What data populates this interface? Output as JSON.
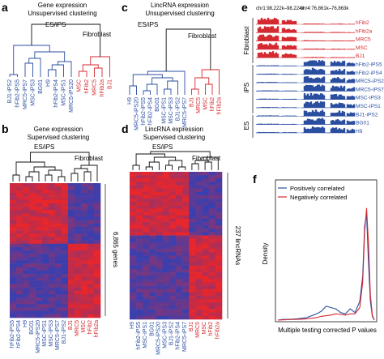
{
  "colors": {
    "es_ips": "#2b4ea0",
    "fibroblast": "#d42a30",
    "heat_red": "#e8262b",
    "heat_blue": "#3b3fae",
    "black": "#111111"
  },
  "panels": {
    "a": {
      "letter": "a",
      "title_line1": "Gene expression",
      "title_line2": "Unsupervised clustering",
      "group_left": "ES/iPS",
      "group_right": "Fibroblast",
      "samples_blue": [
        "BJ1-iPS2",
        "hFib2-iPS5",
        "MRC5-iPS7",
        "MSC-iPS3",
        "BG01",
        "H9",
        "hFib2-iPS4",
        "MSC-iPS1",
        "MRC5-iPS20"
      ],
      "samples_red": [
        "MSC",
        "hFib2",
        "MRC5",
        "hFib2a",
        "BJ1"
      ]
    },
    "b": {
      "letter": "b",
      "title_line1": "Gene expression",
      "title_line2": "Supervised clustering",
      "group_left": "ES/iPS",
      "group_right": "Fibroblast",
      "row_annotation": "6,865 genes",
      "samples_blue": [
        "hFib2-iPS5",
        "hFib2-iPS4",
        "H9",
        "BG01",
        "MRC5-iPS20",
        "MSC-iPS1",
        "MSC-iPS3",
        "MRC5-iPS7",
        "BJ1-iPS2"
      ],
      "samples_red": [
        "BJ1",
        "MRC5",
        "MSC",
        "hFib2",
        "hFib2a"
      ]
    },
    "c": {
      "letter": "c",
      "title_line1": "LincRNA expression",
      "title_line2": "Unsupervised clustering",
      "group_left": "ES/iPS",
      "group_right": "Fibroblast",
      "samples_blue": [
        "H9",
        "MRC5-iPS20",
        "hFib2-iPS5",
        "hFib2-iPS4",
        "BG01",
        "MSC-iPS1",
        "MSC-iPS3",
        "BJ1-iPS2",
        "MRC5-iPS7"
      ],
      "samples_red": [
        "BJ1",
        "MRC5",
        "MSC",
        "hFib2",
        "hFib2a"
      ]
    },
    "d": {
      "letter": "d",
      "title_line1": "LincRNA expression",
      "title_line2": "Supervised clustering",
      "group_left": "ES/iPS",
      "group_right": "Fibroblast",
      "row_annotation": "237 lincRNAs",
      "samples_blue": [
        "H9",
        "hFib2-iPS5",
        "MSC-iPS1",
        "BG01",
        "MRC5-iPS20",
        "MSC-iPS3",
        "BJ1-iPS2",
        "hFib2-iPS4",
        "MRC5-iPS7"
      ],
      "samples_red": [
        "BJ1",
        "MRC5",
        "MSC",
        "hFib2",
        "hFib2a"
      ]
    },
    "e": {
      "letter": "e",
      "locus1": "chr1:98,222k–98,224k",
      "locus2": "chr4:76,861k–76,863k",
      "group_fibroblast": "Fibroblast",
      "group_ips": "iPS",
      "group_es": "ES",
      "tracks_red": [
        "hFib2",
        "hFib2a",
        "MRC5",
        "MSC",
        "BJ1"
      ],
      "tracks_blue_ips": [
        "hFib2-iPS5",
        "hFib2-iPS4",
        "MRC5-iPS20",
        "MRC5-iPS7",
        "MSC-iPS3",
        "MSC-iPS1",
        "BJ1-iPS2"
      ],
      "tracks_blue_es": [
        "BG01",
        "H9"
      ]
    },
    "f": {
      "letter": "f",
      "ylabel": "Density",
      "xlabel": "Multiple testing corrected P values",
      "legend_positive": "Positively correlated",
      "legend_negative": "Negatively correlated",
      "chart_data": {
        "type": "line",
        "xlim": [
          0,
          1
        ],
        "ylim": [
          0,
          10
        ],
        "series": [
          {
            "name": "Positively correlated",
            "color": "#2b4ea0",
            "x": [
              0,
              0.05,
              0.1,
              0.15,
              0.2,
              0.25,
              0.3,
              0.35,
              0.4,
              0.45,
              0.5,
              0.55,
              0.6,
              0.65,
              0.7,
              0.75,
              0.8,
              0.85,
              0.88,
              0.9,
              0.92,
              0.94,
              0.96,
              0.98,
              1.0
            ],
            "y": [
              0,
              0.05,
              0.05,
              0.08,
              0.1,
              0.15,
              0.2,
              0.35,
              0.5,
              0.7,
              1.1,
              1.0,
              0.9,
              0.6,
              0.5,
              0.9,
              0.6,
              1.5,
              3.5,
              7.5,
              8.4,
              4.5,
              1.5,
              0.3,
              0
            ]
          },
          {
            "name": "Negatively correlated",
            "color": "#d42a30",
            "x": [
              0,
              0.05,
              0.1,
              0.15,
              0.2,
              0.25,
              0.3,
              0.35,
              0.4,
              0.45,
              0.5,
              0.55,
              0.6,
              0.65,
              0.7,
              0.75,
              0.8,
              0.85,
              0.88,
              0.9,
              0.92,
              0.94,
              0.96,
              0.98,
              1.0
            ],
            "y": [
              0,
              0.02,
              0.03,
              0.05,
              0.06,
              0.08,
              0.1,
              0.15,
              0.2,
              0.3,
              0.35,
              0.4,
              0.5,
              0.45,
              0.4,
              0.5,
              0.5,
              1.0,
              3.0,
              7.0,
              8.9,
              6.0,
              2.0,
              0.4,
              0
            ]
          }
        ]
      }
    }
  }
}
